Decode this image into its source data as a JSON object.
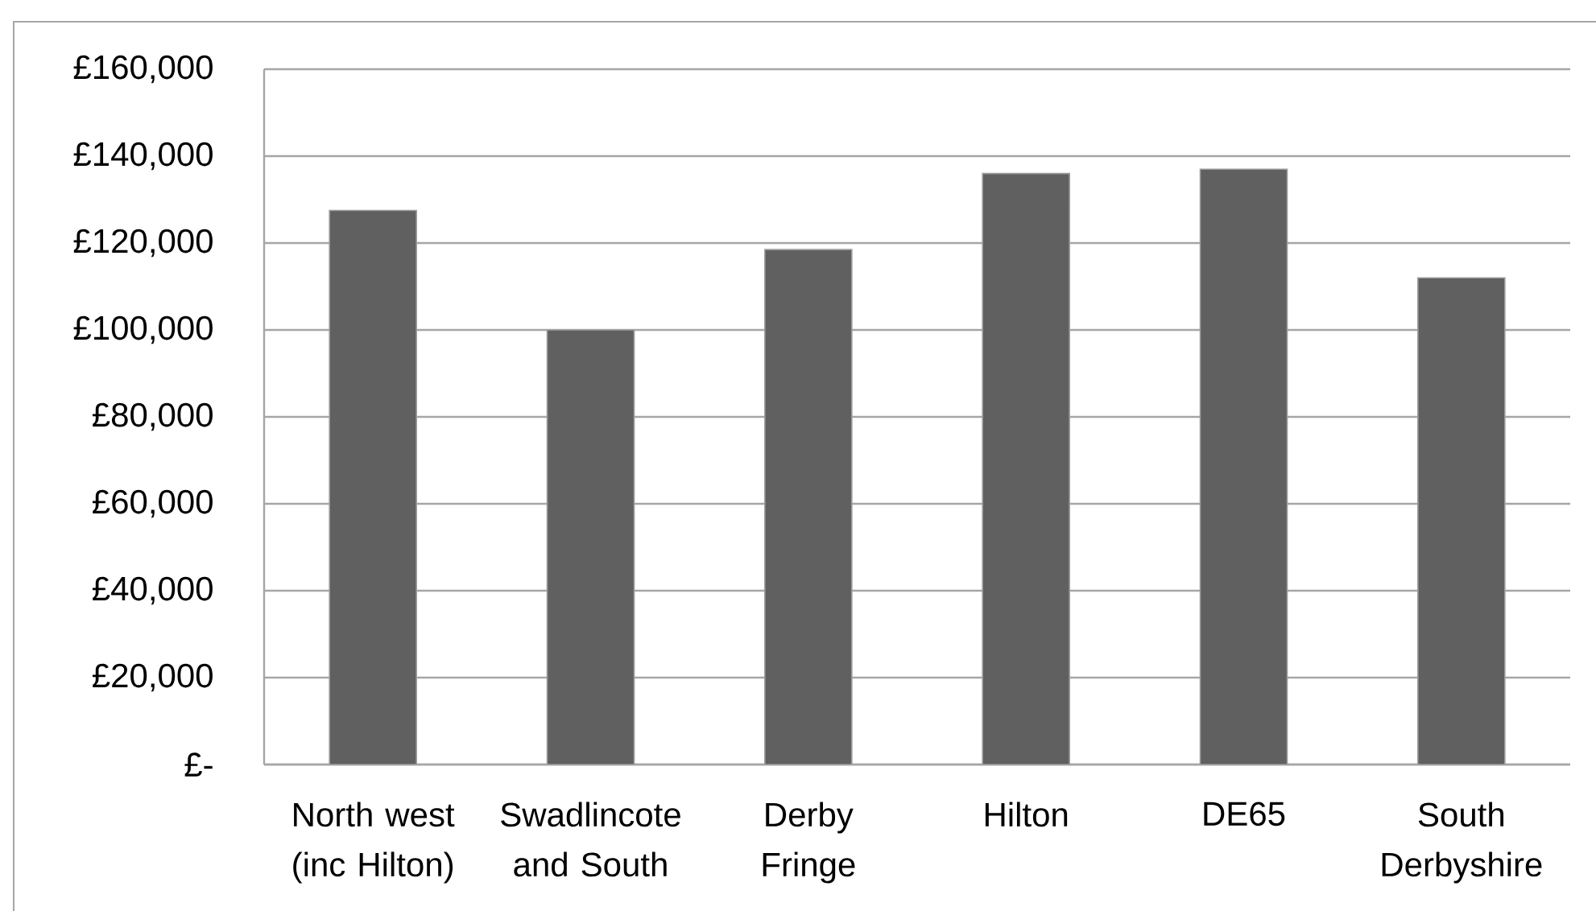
{
  "chart_data": {
    "type": "bar",
    "categories": [
      "North west (inc Hilton)",
      "Swadlincote and South",
      "Derby Fringe",
      "Hilton",
      "DE65",
      "South Derbyshire"
    ],
    "values": [
      127500,
      100000,
      118500,
      136000,
      137000,
      112000
    ],
    "color": "#606060",
    "ylim": [
      0,
      160000
    ],
    "yticks": [
      {
        "value": 0,
        "label": "£-"
      },
      {
        "value": 20000,
        "label": "£20,000"
      },
      {
        "value": 40000,
        "label": "£40,000"
      },
      {
        "value": 60000,
        "label": "£60,000"
      },
      {
        "value": 80000,
        "label": "£80,000"
      },
      {
        "value": 100000,
        "label": "£100,000"
      },
      {
        "value": 120000,
        "label": "£120,000"
      },
      {
        "value": 140000,
        "label": "£140,000"
      },
      {
        "value": 160000,
        "label": "£160,000"
      }
    ],
    "grid": "y"
  }
}
